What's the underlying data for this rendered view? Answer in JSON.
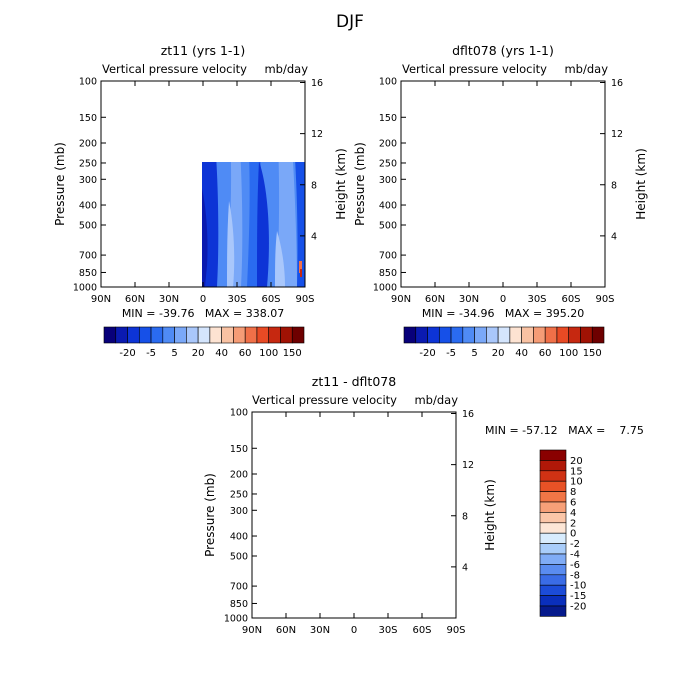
{
  "figure": {
    "title": "DJF"
  },
  "chart_data": [
    {
      "type": "heatmap",
      "title": "zt11 (yrs 1-1)",
      "subtitle_left": "Vertical pressure velocity",
      "subtitle_right": "mb/day",
      "ylabel": "Pressure (mb)",
      "y2label": "Height (km)",
      "x_ticks": [
        "90N",
        "60N",
        "30N",
        "0",
        "30S",
        "60S",
        "90S"
      ],
      "y_ticks": [
        "100",
        "150",
        "200",
        "250",
        "300",
        "400",
        "500",
        "700",
        "850",
        "1000"
      ],
      "y2_ticks": [
        "16",
        "12",
        "8",
        "4"
      ],
      "stats": "MIN = -39.76   MAX = 338.07",
      "colorbar_labels": [
        "-20",
        "-5",
        "5",
        "20",
        "40",
        "60",
        "100",
        "150"
      ],
      "palette": [
        "#08007a",
        "#0a1ab0",
        "#0d34d6",
        "#1650e8",
        "#2a6bf0",
        "#4f8bf5",
        "#7aa8f8",
        "#a9c7fb",
        "#d4e5fd",
        "#fde3d2",
        "#f9c2a3",
        "#f59c76",
        "#f07048",
        "#e84a24",
        "#c62810",
        "#a01204",
        "#6e0000"
      ]
    },
    {
      "type": "heatmap",
      "title": "dflt078 (yrs 1-1)",
      "subtitle_left": "Vertical pressure velocity",
      "subtitle_right": "mb/day",
      "ylabel": "Pressure (mb)",
      "y2label": "Height (km)",
      "x_ticks": [
        "90N",
        "60N",
        "30N",
        "0",
        "30S",
        "60S",
        "90S"
      ],
      "y_ticks": [
        "100",
        "150",
        "200",
        "250",
        "300",
        "400",
        "500",
        "700",
        "850",
        "1000"
      ],
      "y2_ticks": [
        "16",
        "12",
        "8",
        "4"
      ],
      "stats": "MIN = -34.96   MAX = 395.20",
      "colorbar_labels": [
        "-20",
        "-5",
        "5",
        "20",
        "40",
        "60",
        "100",
        "150"
      ],
      "palette": [
        "#08007a",
        "#0a1ab0",
        "#0d34d6",
        "#1650e8",
        "#2a6bf0",
        "#4f8bf5",
        "#7aa8f8",
        "#a9c7fb",
        "#d4e5fd",
        "#fde3d2",
        "#f9c2a3",
        "#f59c76",
        "#f07048",
        "#e84a24",
        "#c62810",
        "#a01204",
        "#6e0000"
      ]
    },
    {
      "type": "heatmap",
      "title": "zt11 - dflt078",
      "subtitle_left": "Vertical pressure velocity",
      "subtitle_right": "mb/day",
      "ylabel": "Pressure (mb)",
      "y2label": "Height (km)",
      "x_ticks": [
        "90N",
        "60N",
        "30N",
        "0",
        "30S",
        "60S",
        "90S"
      ],
      "y_ticks": [
        "100",
        "150",
        "200",
        "250",
        "300",
        "400",
        "500",
        "700",
        "850",
        "1000"
      ],
      "y2_ticks": [
        "16",
        "12",
        "8",
        "4"
      ],
      "stats": "MIN = -57.12   MAX =    7.75",
      "colorbar_labels": [
        "20",
        "15",
        "10",
        "8",
        "6",
        "4",
        "2",
        "0",
        "-2",
        "-4",
        "-6",
        "-8",
        "-10",
        "-15",
        "-20"
      ],
      "palette": [
        "#8a0000",
        "#b01808",
        "#d03214",
        "#e85226",
        "#f27646",
        "#f7a078",
        "#fbc6a8",
        "#fde6d6",
        "#d8ecfd",
        "#a9cdfa",
        "#80acf6",
        "#5a8cf0",
        "#3a6ce6",
        "#1c4cd8",
        "#0a2fbc",
        "#061a8c"
      ]
    }
  ]
}
